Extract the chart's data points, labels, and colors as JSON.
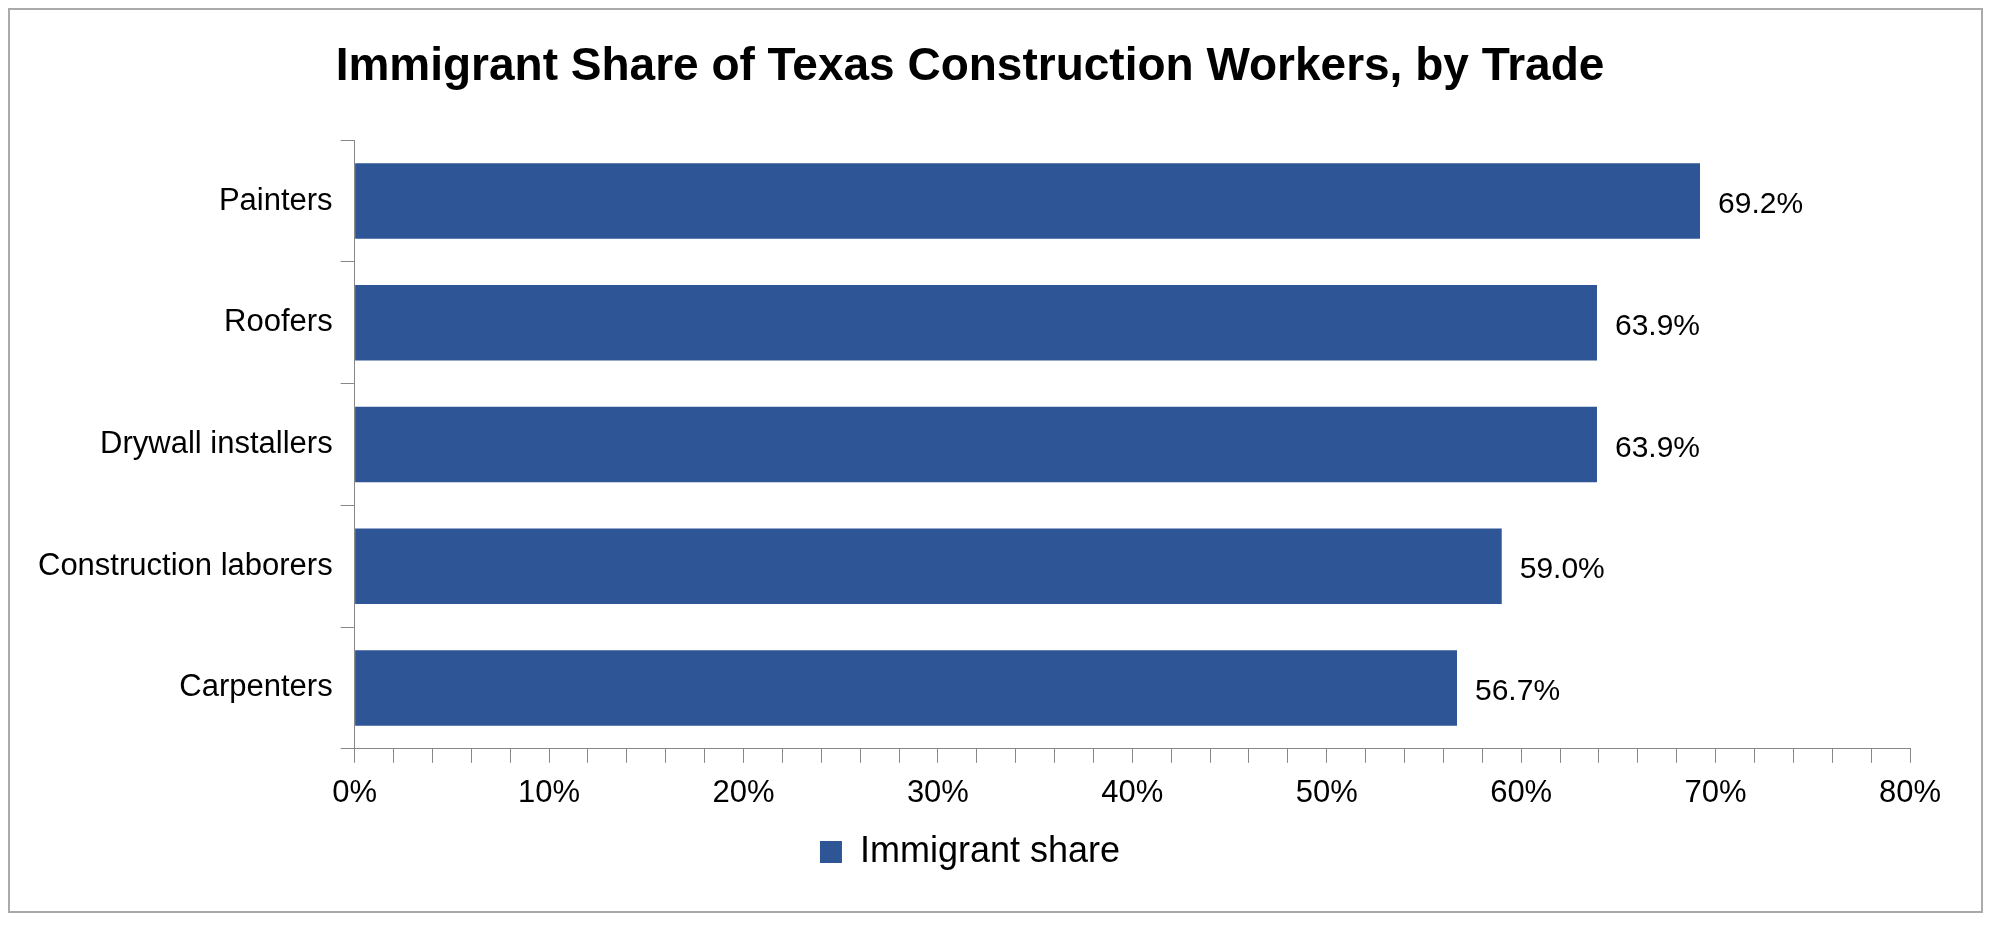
{
  "chart_data": {
    "type": "bar",
    "orientation": "horizontal",
    "title": "Immigrant Share of Texas Construction Workers, by Trade",
    "categories": [
      "Painters",
      "Roofers",
      "Drywall installers",
      "Construction laborers",
      "Carpenters"
    ],
    "series": [
      {
        "name": "Immigrant share",
        "color": "#2e5596",
        "values": [
          69.2,
          63.9,
          63.9,
          59.0,
          56.7
        ],
        "value_labels": [
          "69.2%",
          "63.9%",
          "63.9%",
          "59.0%",
          "56.7%"
        ]
      }
    ],
    "xlim": [
      0,
      80
    ],
    "xticks": [
      {
        "value": 0,
        "label": "0%"
      },
      {
        "value": 2,
        "label": null
      },
      {
        "value": 4,
        "label": null
      },
      {
        "value": 6,
        "label": null
      },
      {
        "value": 8,
        "label": null
      },
      {
        "value": 10,
        "label": "10%"
      },
      {
        "value": 12,
        "label": null
      },
      {
        "value": 14,
        "label": null
      },
      {
        "value": 16,
        "label": null
      },
      {
        "value": 18,
        "label": null
      },
      {
        "value": 20,
        "label": "20%"
      },
      {
        "value": 22,
        "label": null
      },
      {
        "value": 24,
        "label": null
      },
      {
        "value": 26,
        "label": null
      },
      {
        "value": 28,
        "label": null
      },
      {
        "value": 30,
        "label": "30%"
      },
      {
        "value": 32,
        "label": null
      },
      {
        "value": 34,
        "label": null
      },
      {
        "value": 36,
        "label": null
      },
      {
        "value": 38,
        "label": null
      },
      {
        "value": 40,
        "label": "40%"
      },
      {
        "value": 42,
        "label": null
      },
      {
        "value": 44,
        "label": null
      },
      {
        "value": 46,
        "label": null
      },
      {
        "value": 48,
        "label": null
      },
      {
        "value": 50,
        "label": "50%"
      },
      {
        "value": 52,
        "label": null
      },
      {
        "value": 54,
        "label": null
      },
      {
        "value": 56,
        "label": null
      },
      {
        "value": 58,
        "label": null
      },
      {
        "value": 60,
        "label": "60%"
      },
      {
        "value": 62,
        "label": null
      },
      {
        "value": 64,
        "label": null
      },
      {
        "value": 66,
        "label": null
      },
      {
        "value": 68,
        "label": null
      },
      {
        "value": 70,
        "label": "70%"
      },
      {
        "value": 72,
        "label": null
      },
      {
        "value": 74,
        "label": null
      },
      {
        "value": 76,
        "label": null
      },
      {
        "value": 78,
        "label": null
      },
      {
        "value": 80,
        "label": "80%"
      }
    ],
    "grid": false,
    "legend": "bottom"
  }
}
